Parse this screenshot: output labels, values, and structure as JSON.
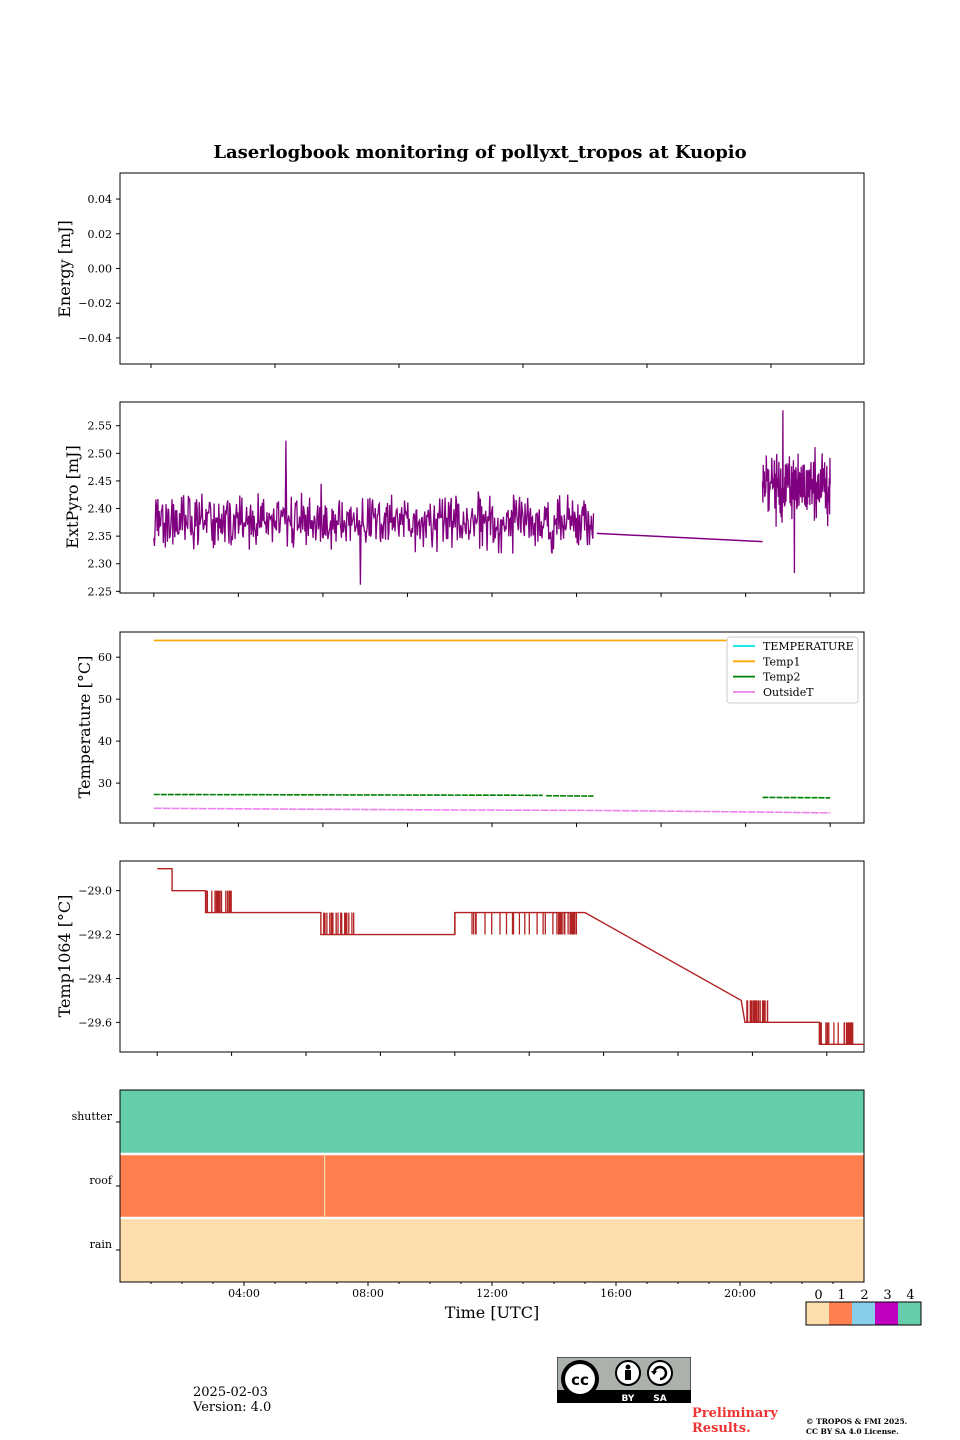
{
  "page": {
    "title": "Laserlogbook monitoring of pollyxt_tropos at Kuopio",
    "date": "2025-02-03",
    "version": "Version: 4.0",
    "preliminary": [
      "Preliminary",
      "Results."
    ],
    "copyright": [
      "© TROPOS & FMI 2025.",
      "CC BY SA 4.0 License."
    ],
    "cc_badge": {
      "label_by": "BY",
      "label_sa": "SA",
      "icons": [
        "cc-icon",
        "by-person-icon",
        "sa-recycle-icon"
      ]
    }
  },
  "chart_data": [
    {
      "type": "line",
      "name": "energy",
      "ylabel": "Energy [mJ]",
      "ylim": [
        -0.055,
        0.055
      ],
      "yticks": [
        -0.04,
        -0.02,
        0.0,
        0.02,
        0.04
      ],
      "ytick_labels": [
        "−0.04",
        "−0.02",
        "0.00",
        "0.02",
        "0.04"
      ],
      "xlim": [
        0,
        24
      ],
      "series": []
    },
    {
      "type": "line",
      "name": "extpyro",
      "ylabel": "ExtPyro [mJ]",
      "ylim": [
        2.247,
        2.593
      ],
      "yticks": [
        2.25,
        2.3,
        2.35,
        2.4,
        2.45,
        2.5,
        2.55
      ],
      "ytick_labels": [
        "2.25",
        "2.30",
        "2.35",
        "2.40",
        "2.45",
        "2.50",
        "2.55"
      ],
      "xlim": [
        0,
        22
      ],
      "color": "#800080",
      "segments": [
        {
          "x_start": 1.0,
          "x_end": 14.0,
          "mean": 2.375,
          "noise": 0.035,
          "min": 2.262,
          "max": 2.523,
          "n": 650
        },
        {
          "x_start": 19.0,
          "x_end": 21.0,
          "mean": 2.44,
          "noise": 0.04,
          "min": 2.283,
          "max": 2.578,
          "n": 220
        }
      ],
      "bridge": {
        "x": [
          14.1,
          19.0
        ],
        "y": [
          2.355,
          2.34
        ]
      },
      "grid": false
    },
    {
      "type": "line",
      "name": "temperature",
      "ylabel": "Temperature [°C]",
      "ylim": [
        20.5,
        66.0
      ],
      "yticks": [
        30,
        40,
        50,
        60
      ],
      "ytick_labels": [
        "30",
        "40",
        "50",
        "60"
      ],
      "xlim": [
        0,
        22
      ],
      "legend": "top-right",
      "series": [
        {
          "name": "TEMPERATURE",
          "color": "#00e5e5",
          "segments": []
        },
        {
          "name": "Temp1",
          "color": "#ffa500",
          "segments": [
            {
              "x": [
                1.0,
                19.3
              ],
              "y": [
                64.0,
                64.0
              ]
            }
          ]
        },
        {
          "name": "Temp2",
          "color": "#008000",
          "segments": [
            {
              "x": [
                1.0,
                12.5
              ],
              "y": [
                27.3,
                27.1
              ]
            },
            {
              "x": [
                12.6,
                14.0
              ],
              "y": [
                27.0,
                26.9
              ]
            },
            {
              "x": [
                19.0,
                21.0
              ],
              "y": [
                26.6,
                26.5
              ]
            }
          ]
        },
        {
          "name": "OutsideT",
          "color": "#ee82ee",
          "segments": [
            {
              "x": [
                1.0,
                5.0,
                10.0,
                14.0,
                19.0,
                21.0
              ],
              "y": [
                24.0,
                23.8,
                23.6,
                23.5,
                23.1,
                22.9
              ]
            }
          ]
        }
      ]
    },
    {
      "type": "line",
      "name": "temp1064",
      "ylabel": "Temp1064 [°C]",
      "ylim": [
        -29.735,
        -28.865
      ],
      "yticks": [
        -29.6,
        -29.4,
        -29.2,
        -29.0
      ],
      "ytick_labels": [
        "−29.6",
        "−29.4",
        "−29.2",
        "−29.0"
      ],
      "xlim": [
        0,
        20
      ],
      "color": "#b22222",
      "steps": [
        {
          "x": 1.0,
          "y": -28.9
        },
        {
          "x": 1.4,
          "y": -29.0
        },
        {
          "x": 2.3,
          "y": -29.1,
          "flicker": [
            2.3,
            3.0,
            -29.0
          ]
        },
        {
          "x": 5.4,
          "y": -29.2,
          "flicker": [
            5.4,
            6.3,
            -29.1
          ]
        },
        {
          "x": 9.0,
          "y": -29.1,
          "flicker": [
            9.0,
            12.2,
            -29.2
          ]
        },
        {
          "x": 12.1,
          "y": -29.1,
          "flicker": [
            11.6,
            12.3,
            -29.2
          ]
        },
        {
          "x": 12.5,
          "y": -29.1
        },
        {
          "x": 16.7,
          "y": -29.5
        },
        {
          "x": 16.8,
          "y": -29.6,
          "flicker": [
            16.8,
            17.5,
            -29.5
          ]
        },
        {
          "x": 18.8,
          "y": -29.7,
          "flicker": [
            18.8,
            19.7,
            -29.6
          ]
        },
        {
          "x": 20.0,
          "y": -29.7
        }
      ]
    },
    {
      "type": "heatmap",
      "name": "flags",
      "rows": [
        "shutter",
        "roof",
        "rain"
      ],
      "xlabel": "Time [UTC]",
      "xlim": [
        0,
        24
      ],
      "xticks": [
        4,
        8,
        12,
        16,
        20
      ],
      "xtick_labels": [
        "04:00",
        "08:00",
        "12:00",
        "16:00",
        "20:00"
      ],
      "row_values": {
        "shutter": 4,
        "roof": 1,
        "rain": 0
      },
      "roof_gap_x": 6.6,
      "colorbar": {
        "ticks": [
          "0",
          "1",
          "2",
          "3",
          "4"
        ],
        "colors": [
          "#ffdead",
          "#ff7f50",
          "#87ceeb",
          "#c000c0",
          "#66cdaa"
        ]
      }
    }
  ]
}
